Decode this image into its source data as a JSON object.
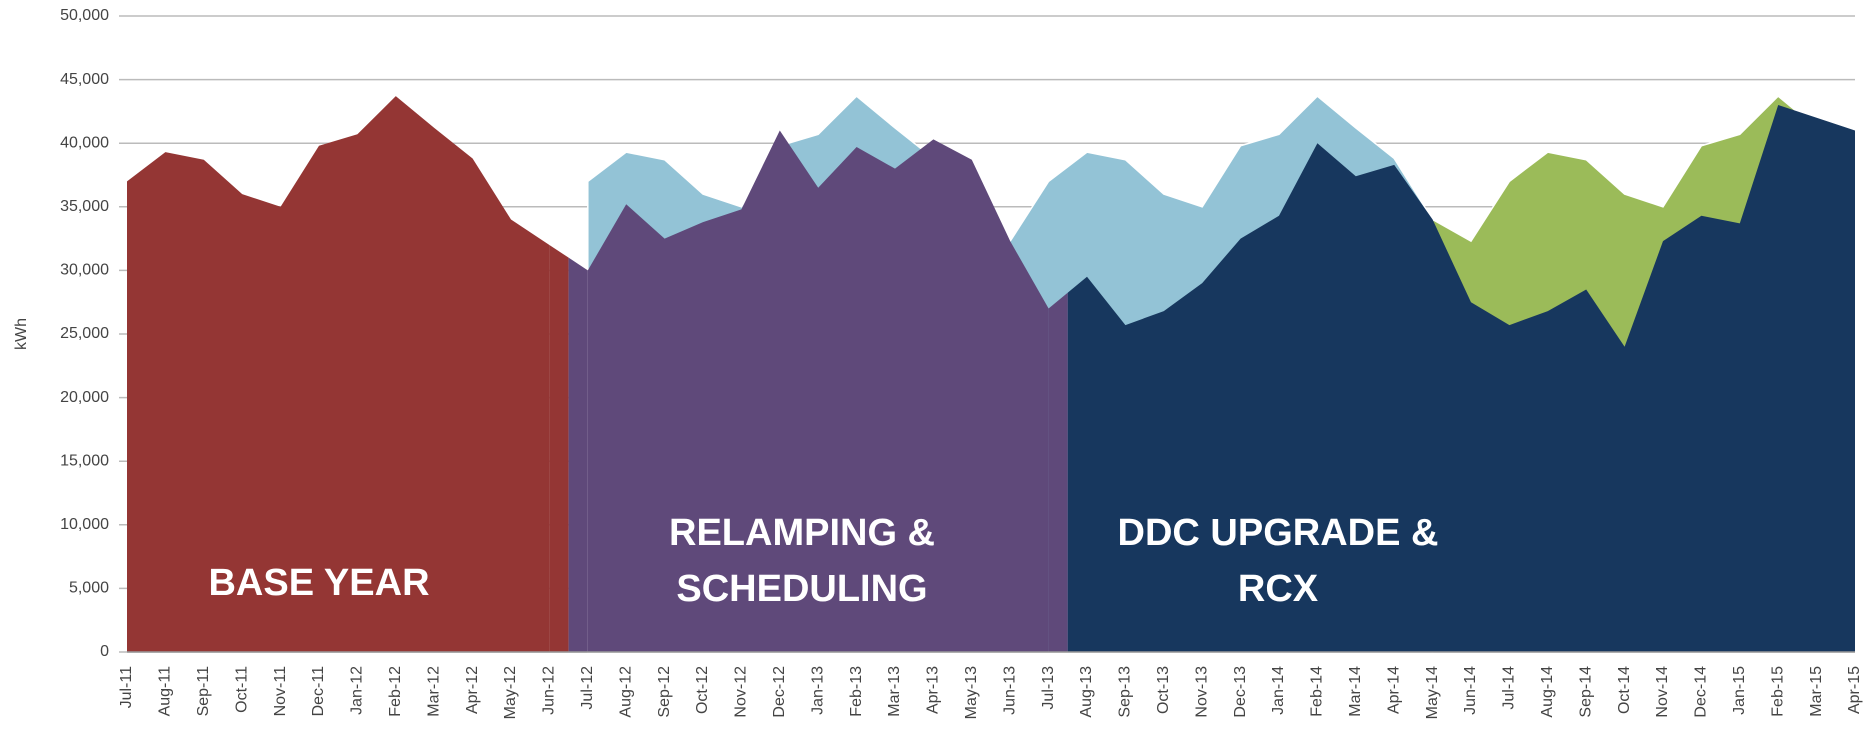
{
  "chart_data": {
    "type": "area",
    "y_label": "kWh",
    "categories": [
      "Jul-11",
      "Aug-11",
      "Sep-11",
      "Oct-11",
      "Nov-11",
      "Dec-11",
      "Jan-12",
      "Feb-12",
      "Mar-12",
      "Apr-12",
      "May-12",
      "Jun-12",
      "Jul-12",
      "Aug-12",
      "Sep-12",
      "Oct-12",
      "Nov-12",
      "Dec-12",
      "Jan-13",
      "Feb-13",
      "Mar-13",
      "Apr-13",
      "May-13",
      "Jun-13",
      "Jul-13",
      "Aug-13",
      "Sep-13",
      "Oct-13",
      "Nov-13",
      "Dec-13",
      "Jan-14",
      "Feb-14",
      "Mar-14",
      "Apr-14",
      "May-14",
      "Jun-14",
      "Jul-14",
      "Aug-14",
      "Sep-14",
      "Oct-14",
      "Nov-14",
      "Dec-14",
      "Jan-15",
      "Feb-15",
      "Mar-15",
      "Apr-15"
    ],
    "baselines": [
      {
        "color": "#93c3d6",
        "values": [
          null,
          null,
          null,
          null,
          null,
          null,
          null,
          null,
          null,
          null,
          null,
          null,
          37000,
          39300,
          38700,
          36000,
          35000,
          39800,
          40700,
          43700,
          41200,
          38800,
          34000,
          32300,
          37000,
          39300,
          38700,
          36000,
          35000,
          39800,
          40700,
          43700,
          41200,
          38800,
          34000,
          null,
          null,
          null,
          null,
          null,
          null,
          null,
          null,
          null,
          null,
          null
        ]
      },
      {
        "color": "#9bbb59",
        "values": [
          null,
          null,
          null,
          null,
          null,
          null,
          null,
          null,
          null,
          null,
          null,
          null,
          null,
          null,
          null,
          null,
          null,
          null,
          null,
          null,
          null,
          null,
          null,
          null,
          null,
          null,
          null,
          null,
          null,
          null,
          null,
          null,
          null,
          null,
          34000,
          32300,
          37000,
          39300,
          38700,
          36000,
          35000,
          39800,
          40700,
          43700,
          41200,
          38800
        ]
      }
    ],
    "series": [
      {
        "name": "BASE YEAR",
        "color": "#943634",
        "values": [
          37000,
          39300,
          38700,
          36000,
          35000,
          39800,
          40700,
          43700,
          41200,
          38800,
          34000,
          32000,
          null,
          null,
          null,
          null,
          null,
          null,
          null,
          null,
          null,
          null,
          null,
          null,
          null,
          null,
          null,
          null,
          null,
          null,
          null,
          null,
          null,
          null,
          null,
          null,
          null,
          null,
          null,
          null,
          null,
          null,
          null,
          null,
          null,
          null
        ]
      },
      {
        "name": "RELAMPING & SCHEDULING",
        "color": "#5f497a",
        "values": [
          null,
          null,
          null,
          null,
          null,
          null,
          null,
          null,
          null,
          null,
          null,
          null,
          30000,
          35200,
          32500,
          33800,
          34800,
          41000,
          36500,
          39700,
          38000,
          40300,
          38700,
          32300,
          27000,
          null,
          null,
          null,
          null,
          null,
          null,
          null,
          null,
          null,
          null,
          null,
          null,
          null,
          null,
          null,
          null,
          null,
          null,
          null,
          null,
          null
        ]
      },
      {
        "name": "DDC UPGRADE & RCX",
        "color": "#17375e",
        "values": [
          null,
          null,
          null,
          null,
          null,
          null,
          null,
          null,
          null,
          null,
          null,
          null,
          null,
          null,
          null,
          null,
          null,
          null,
          null,
          null,
          null,
          null,
          null,
          null,
          null,
          29500,
          25700,
          26800,
          29000,
          32500,
          34300,
          40000,
          37400,
          38300,
          34000,
          27500,
          25700,
          26800,
          28500,
          24000,
          32300,
          34300,
          33700,
          43000,
          42000,
          41000
        ]
      }
    ],
    "ylim": [
      0,
      50000
    ],
    "yticks": [
      0,
      {
        "value": 5000,
        "label": "5,000"
      },
      {
        "value": 10000,
        "label": "10,000"
      },
      {
        "value": 15000,
        "label": "15,000"
      },
      {
        "value": 20000,
        "label": "20,000"
      },
      {
        "value": 25000,
        "label": "25,000"
      },
      {
        "value": 30000,
        "label": "30,000"
      },
      {
        "value": 35000,
        "label": "35,000"
      },
      {
        "value": 40000,
        "label": "40,000"
      },
      {
        "value": 45000,
        "label": "45,000"
      },
      {
        "value": 50000,
        "label": "50,000"
      }
    ],
    "grid": true
  }
}
